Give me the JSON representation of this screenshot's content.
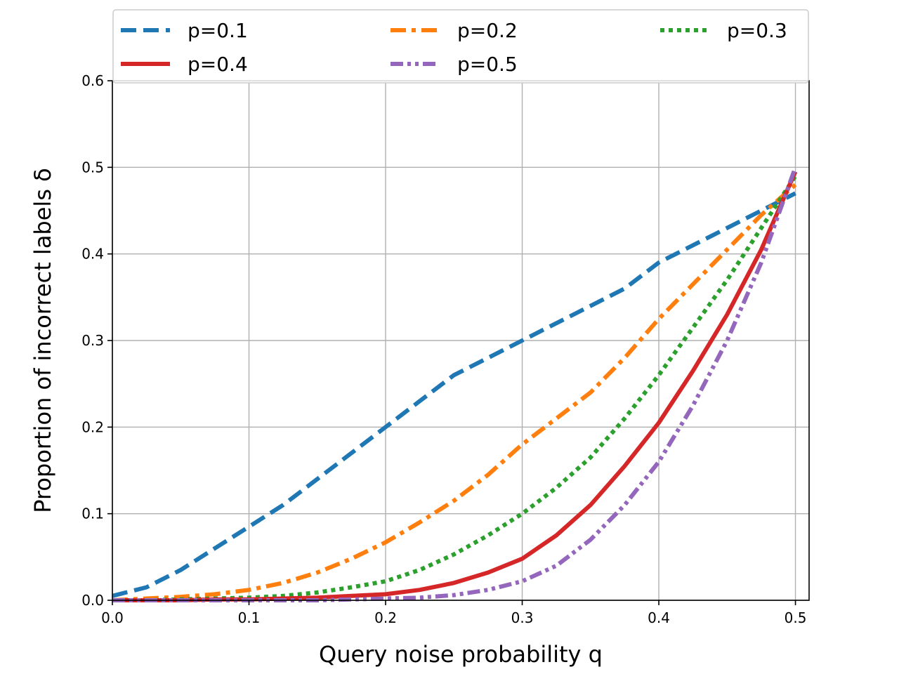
{
  "chart_data": {
    "type": "line",
    "title": "",
    "xlabel": "Query noise probability q",
    "ylabel": "Proportion of incorrect labels δ",
    "xlim": [
      0.0,
      0.51
    ],
    "ylim": [
      0.0,
      0.6
    ],
    "xticks": [
      "0.0",
      "0.1",
      "0.2",
      "0.3",
      "0.4",
      "0.5"
    ],
    "yticks": [
      "0.0",
      "0.1",
      "0.2",
      "0.3",
      "0.4",
      "0.5",
      "0.6"
    ],
    "grid": true,
    "legend_position": "top",
    "x": [
      0.0,
      0.025,
      0.05,
      0.075,
      0.1,
      0.125,
      0.15,
      0.175,
      0.2,
      0.225,
      0.25,
      0.275,
      0.3,
      0.325,
      0.35,
      0.375,
      0.4,
      0.425,
      0.45,
      0.475,
      0.5
    ],
    "series": [
      {
        "name": "p=0.1",
        "color": "#1f77b4",
        "dash": "dashed",
        "values": [
          0.005,
          0.015,
          0.035,
          0.06,
          0.085,
          0.11,
          0.14,
          0.17,
          0.2,
          0.23,
          0.26,
          0.28,
          0.3,
          0.32,
          0.34,
          0.36,
          0.39,
          0.41,
          0.43,
          0.45,
          0.47
        ]
      },
      {
        "name": "p=0.2",
        "color": "#ff7f0e",
        "dash": "dashdot",
        "values": [
          0.0,
          0.002,
          0.004,
          0.007,
          0.012,
          0.02,
          0.032,
          0.048,
          0.067,
          0.09,
          0.115,
          0.145,
          0.18,
          0.21,
          0.24,
          0.28,
          0.325,
          0.365,
          0.405,
          0.445,
          0.48
        ]
      },
      {
        "name": "p=0.3",
        "color": "#2ca02c",
        "dash": "dotted",
        "values": [
          0.0,
          0.0,
          0.001,
          0.002,
          0.003,
          0.005,
          0.009,
          0.015,
          0.022,
          0.035,
          0.053,
          0.075,
          0.1,
          0.13,
          0.165,
          0.21,
          0.26,
          0.315,
          0.37,
          0.43,
          0.49
        ]
      },
      {
        "name": "p=0.4",
        "color": "#d62728",
        "dash": "solid",
        "values": [
          0.0,
          0.0,
          0.0,
          0.001,
          0.001,
          0.002,
          0.003,
          0.005,
          0.007,
          0.012,
          0.02,
          0.032,
          0.048,
          0.075,
          0.11,
          0.155,
          0.205,
          0.265,
          0.33,
          0.405,
          0.495
        ]
      },
      {
        "name": "p=0.5",
        "color": "#9467bd",
        "dash": "dashdotdot",
        "values": [
          0.0,
          0.0,
          0.0,
          0.0,
          0.0,
          0.0,
          0.0,
          0.001,
          0.002,
          0.003,
          0.006,
          0.012,
          0.022,
          0.04,
          0.07,
          0.11,
          0.16,
          0.225,
          0.3,
          0.39,
          0.5
        ]
      }
    ]
  }
}
